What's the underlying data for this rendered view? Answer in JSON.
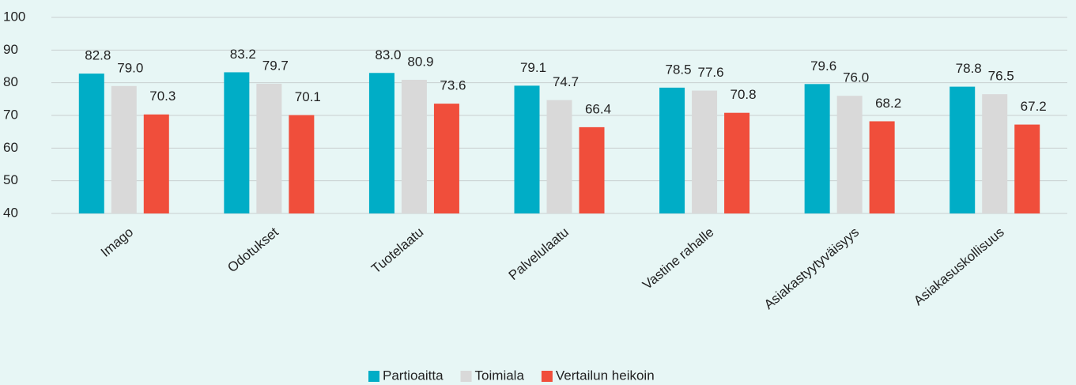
{
  "chart_data": {
    "type": "bar",
    "categories": [
      "Imago",
      "Odotukset",
      "Tuotelaatu",
      "Palvelulaatu",
      "Vastine rahalle",
      "Asiakastyytyväisyys",
      "Asiakasuskollisuus"
    ],
    "series": [
      {
        "name": "Partioaitta",
        "color": "#00adc6",
        "values": [
          82.8,
          83.2,
          83.0,
          79.1,
          78.5,
          79.6,
          78.8
        ],
        "value_labels": [
          "82.8",
          "83.2",
          "83.0",
          "79.1",
          "78.5",
          "79.6",
          "78.8"
        ]
      },
      {
        "name": "Toimiala",
        "color": "#d9d9d9",
        "values": [
          79.0,
          79.7,
          80.9,
          74.7,
          77.6,
          76.0,
          76.5
        ],
        "value_labels": [
          "79.0",
          "79.7",
          "80.9",
          "74.7",
          "77.6",
          "76.0",
          "76.5"
        ]
      },
      {
        "name": "Vertailun heikoin",
        "color": "#f04e3b",
        "values": [
          70.3,
          70.1,
          73.6,
          66.4,
          70.8,
          68.2,
          67.2
        ],
        "value_labels": [
          "70.3",
          "70.1",
          "73.6",
          "66.4",
          "70.8",
          "68.2",
          "67.2"
        ]
      }
    ],
    "ylim": [
      40,
      100
    ],
    "yticks": [
      40,
      50,
      60,
      70,
      80,
      90,
      100
    ],
    "grid": true,
    "legend": "bottom"
  }
}
